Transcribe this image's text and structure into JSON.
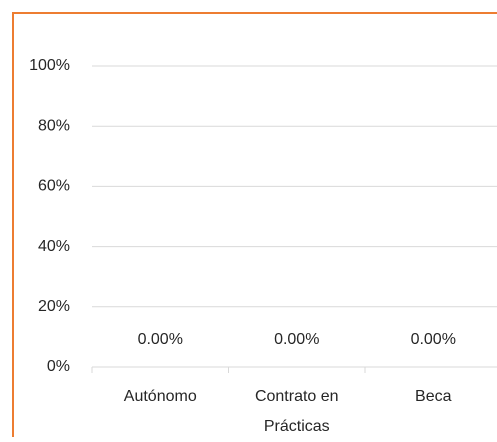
{
  "chart_data": {
    "type": "bar",
    "categories": [
      "Autónomo",
      "Contrato en Prácticas",
      "Beca"
    ],
    "values": [
      0,
      0,
      0
    ],
    "value_labels": [
      "0.00%",
      "0.00%",
      "0.00%"
    ],
    "color": "#4472c4",
    "ylim": [
      0,
      100
    ],
    "yticks": [
      {
        "value": 0,
        "label": "0%"
      },
      {
        "value": 20,
        "label": "20%"
      },
      {
        "value": 40,
        "label": "40%"
      },
      {
        "value": 60,
        "label": "60%"
      },
      {
        "value": 80,
        "label": "80%"
      },
      {
        "value": 100,
        "label": "100%"
      }
    ],
    "grid": true
  }
}
